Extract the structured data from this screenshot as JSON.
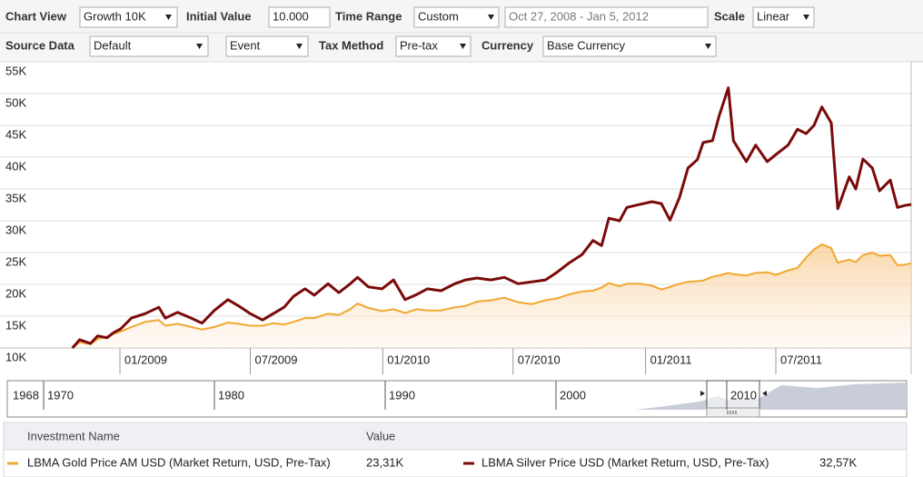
{
  "toolbar": {
    "row1": [
      {
        "label": "Chart View",
        "value": "Growth 10K"
      },
      {
        "label": "Initial Value",
        "value": "10.000"
      },
      {
        "label": "Time Range",
        "value": "Custom",
        "range": "Oct 27, 2008 - Jan 5, 2012"
      },
      {
        "label": "Scale",
        "value": "Linear"
      }
    ],
    "row2": [
      {
        "label": "Source Data",
        "value": "Default",
        "extra": "Event"
      },
      {
        "label": "Tax Method",
        "value": "Pre-tax"
      },
      {
        "label": "Currency",
        "value": "Base Currency"
      }
    ]
  },
  "chart_data": {
    "type": "line",
    "grid": true,
    "log_scale": false,
    "x": [
      "2008-10-27",
      "2008-11-06",
      "2008-11-21",
      "2008-12-01",
      "2008-12-14",
      "2008-12-23",
      "2009-01-02",
      "2009-01-17",
      "2009-02-05",
      "2009-02-24",
      "2009-03-05",
      "2009-03-22",
      "2009-04-10",
      "2009-04-25",
      "2009-05-12",
      "2009-05-31",
      "2009-06-15",
      "2009-07-01",
      "2009-07-18",
      "2009-08-02",
      "2009-08-17",
      "2009-08-30",
      "2009-09-15",
      "2009-09-28",
      "2009-10-17",
      "2009-11-01",
      "2009-11-17",
      "2009-11-27",
      "2009-12-12",
      "2009-12-31",
      "2010-01-16",
      "2010-02-01",
      "2010-02-17",
      "2010-03-04",
      "2010-03-23",
      "2010-04-11",
      "2010-04-26",
      "2010-05-12",
      "2010-05-31",
      "2010-06-19",
      "2010-07-08",
      "2010-07-27",
      "2010-08-15",
      "2010-08-31",
      "2010-09-16",
      "2010-10-05",
      "2010-10-20",
      "2010-11-01",
      "2010-11-11",
      "2010-11-26",
      "2010-12-06",
      "2010-12-25",
      "2011-01-10",
      "2011-01-23",
      "2011-02-04",
      "2011-02-17",
      "2011-03-01",
      "2011-03-14",
      "2011-03-22",
      "2011-04-04",
      "2011-04-13",
      "2011-04-26",
      "2011-05-03",
      "2011-05-21",
      "2011-06-03",
      "2011-06-19",
      "2011-07-01",
      "2011-07-18",
      "2011-07-31",
      "2011-08-12",
      "2011-08-23",
      "2011-09-03",
      "2011-09-16",
      "2011-09-25",
      "2011-10-11",
      "2011-10-20",
      "2011-10-30",
      "2011-11-12",
      "2011-11-22",
      "2011-12-07",
      "2011-12-17",
      "2011-12-27",
      "2012-01-05"
    ],
    "series": [
      {
        "name": "LBMA Gold Price AM USD (Market Return, USD, Pre-Tax)",
        "color": "#f0a830",
        "area": true,
        "values": [
          10000,
          10900,
          10600,
          11400,
          11800,
          12200,
          12600,
          13300,
          14100,
          14400,
          13500,
          13800,
          13300,
          12900,
          13300,
          14000,
          13800,
          13500,
          13500,
          13900,
          13700,
          14100,
          14700,
          14700,
          15400,
          15200,
          16100,
          17000,
          16300,
          15800,
          16100,
          15500,
          16100,
          15900,
          15900,
          16400,
          16600,
          17300,
          17500,
          17900,
          17200,
          16900,
          17500,
          17800,
          18400,
          18900,
          19000,
          19500,
          20200,
          19700,
          20100,
          20100,
          19800,
          19200,
          19600,
          20100,
          20400,
          20500,
          20600,
          21200,
          21400,
          21800,
          21600,
          21400,
          21800,
          21900,
          21500,
          22200,
          22600,
          24200,
          25500,
          26300,
          25700,
          23400,
          23900,
          23500,
          24600,
          25000,
          24500,
          24600,
          23000,
          23100,
          23310
        ]
      },
      {
        "name": "LBMA Silver Price USD (Market Return, USD, Pre-Tax)",
        "color": "#7a0a0a",
        "area": false,
        "values": [
          10000,
          11300,
          10700,
          11900,
          11600,
          12400,
          13000,
          14700,
          15400,
          16400,
          14700,
          15600,
          14700,
          13900,
          15900,
          17600,
          16600,
          15400,
          14400,
          15400,
          16400,
          18100,
          19300,
          18300,
          20100,
          18700,
          20100,
          21100,
          19600,
          19300,
          20700,
          17600,
          18400,
          19300,
          19000,
          20100,
          20700,
          21000,
          20700,
          21100,
          20100,
          20400,
          20700,
          21900,
          23300,
          24700,
          26900,
          26100,
          30400,
          30000,
          32100,
          32600,
          33000,
          32700,
          30100,
          33600,
          38300,
          39600,
          42300,
          42600,
          46400,
          50900,
          42600,
          39300,
          41900,
          39300,
          40400,
          41900,
          44400,
          43700,
          45000,
          47900,
          45400,
          31900,
          36900,
          35000,
          39700,
          38300,
          34700,
          36400,
          32100,
          32400,
          32570
        ]
      }
    ],
    "xlim": [
      "2008-07-31",
      "2012-01-05"
    ],
    "xticks": [
      {
        "value": "2009-01-01",
        "label": "01/2009"
      },
      {
        "value": "2009-07-01",
        "label": "07/2009"
      },
      {
        "value": "2010-01-01",
        "label": "01/2010"
      },
      {
        "value": "2010-07-01",
        "label": "07/2010"
      },
      {
        "value": "2011-01-01",
        "label": "01/2011"
      },
      {
        "value": "2011-07-01",
        "label": "07/2011"
      }
    ],
    "ylim": [
      10000,
      55000
    ],
    "yticks": [
      {
        "value": 10000,
        "label": "10K"
      },
      {
        "value": 15000,
        "label": "15K"
      },
      {
        "value": 20000,
        "label": "20K"
      },
      {
        "value": 25000,
        "label": "25K"
      },
      {
        "value": 30000,
        "label": "30K"
      },
      {
        "value": 35000,
        "label": "35K"
      },
      {
        "value": 40000,
        "label": "40K"
      },
      {
        "value": 45000,
        "label": "45K"
      },
      {
        "value": 50000,
        "label": "50K"
      },
      {
        "value": 55000,
        "label": "55K"
      }
    ]
  },
  "navigator": {
    "labels": [
      "1968",
      "1970",
      "1980",
      "1990",
      "2000",
      "2010"
    ]
  },
  "holdings_table": {
    "headers": [
      "Investment Name",
      "Value"
    ],
    "values": [
      "23,31K",
      "32,57K"
    ]
  }
}
